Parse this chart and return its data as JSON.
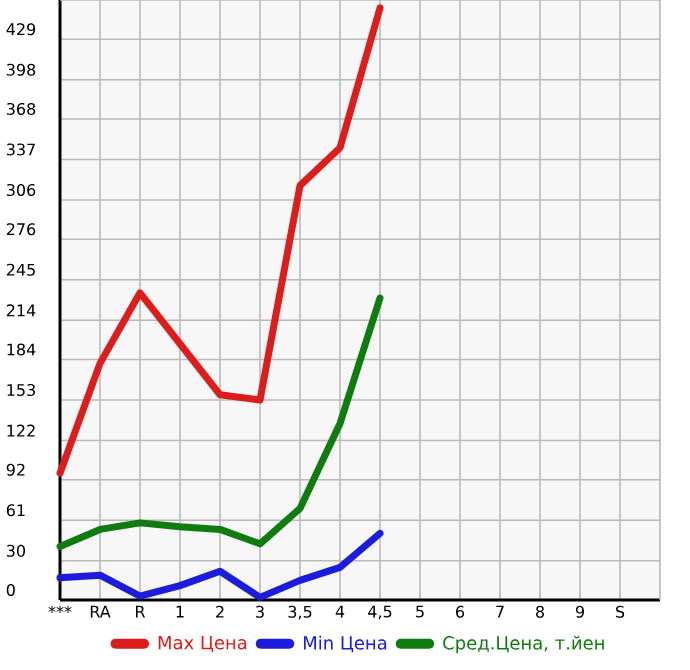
{
  "chart_data": {
    "type": "line",
    "categories": [
      "***",
      "RA",
      "R",
      "1",
      "2",
      "3",
      "3,5",
      "4",
      "4,5",
      "5",
      "6",
      "7",
      "8",
      "9",
      "S"
    ],
    "series": [
      {
        "name": "Max Цена",
        "color": "#dd1c1c",
        "values": [
          97,
          181,
          235,
          196,
          157,
          153,
          317,
          346,
          453,
          null,
          null,
          null,
          null,
          null,
          null
        ]
      },
      {
        "name": "Min Цена",
        "color": "#1c1cdd",
        "values": [
          17,
          19,
          3,
          11,
          22,
          2,
          15,
          25,
          51,
          null,
          null,
          null,
          null,
          null,
          null
        ]
      },
      {
        "name": "Сред.Цена, т.йен",
        "color": "#107c10",
        "values": [
          41,
          54,
          59,
          56,
          54,
          43,
          70,
          135,
          231,
          null,
          null,
          null,
          null,
          null,
          null
        ]
      }
    ],
    "ylim": [
      0,
      459
    ],
    "yticks": [
      0,
      30,
      61,
      92,
      122,
      153,
      184,
      214,
      245,
      276,
      306,
      337,
      368,
      398,
      429
    ],
    "grid": true,
    "legend": "bottom",
    "marker": "none",
    "line_style": "solid"
  }
}
